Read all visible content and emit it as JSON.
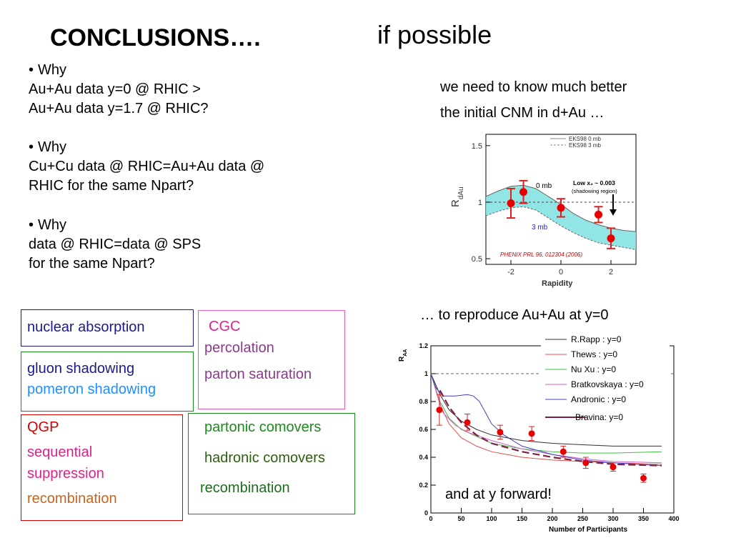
{
  "slide": {
    "title": "CONCLUSIONS….",
    "subtitle": "if possible",
    "note": [
      "we need to know much better",
      "the initial CNM in d+Au …"
    ],
    "reproduce": "… to reproduce Au+Au at y=0",
    "forward": "and at y forward!"
  },
  "questions": [
    {
      "bullet": "•",
      "head": "Why",
      "lines": [
        "Au+Au data y=0 @ RHIC >",
        "Au+Au data y=1.7 @ RHIC?"
      ]
    },
    {
      "bullet": "•",
      "head": "Why",
      "lines": [
        "Cu+Cu data @ RHIC=Au+Au data @",
        "RHIC for the same Npart?"
      ]
    },
    {
      "bullet": "•",
      "head": "Why",
      "lines": [
        "data @ RHIC=data @ SPS",
        "for the same Npart?"
      ]
    }
  ],
  "boxes": {
    "absorption": {
      "text": "nuclear absorption",
      "color": "#1a1a8c"
    },
    "shadowing": [
      {
        "text": "gluon shadowing",
        "color": "#1a1a8c"
      },
      {
        "text": "pomeron shadowing",
        "color": "#1e90ff"
      }
    ],
    "cgc": [
      {
        "text": "CGC",
        "color": "#e0218a"
      },
      {
        "text": "percolation",
        "color": "#8b3a8b"
      },
      {
        "text": "parton saturation",
        "color": "#8b3a8b"
      }
    ],
    "qgp": [
      {
        "text": "QGP",
        "color": "#d40000"
      },
      {
        "text": "sequential",
        "color": "#e0218a"
      },
      {
        "text": "suppression",
        "color": "#e0218a"
      },
      {
        "text": "recombination",
        "color": "#c8641e"
      }
    ],
    "comovers": [
      {
        "text": "partonic comovers",
        "color": "#1a8c1a"
      },
      {
        "text": "hadronic comovers",
        "color": "#2e5e10"
      },
      {
        "text": "recombination",
        "color": "#1a6e1a"
      }
    ],
    "colors": {
      "blue": "#1a1a8c",
      "magenta": "#e060c0",
      "red": "#d40000",
      "green": "#1a8c1a"
    }
  },
  "chart_data": [
    {
      "type": "line",
      "xlabel": "Rapidity",
      "ylabel": "R_dAu",
      "xlim": [
        -3,
        3
      ],
      "ylim": [
        0.45,
        1.6
      ],
      "xticks": [
        "-2",
        "0",
        "2"
      ],
      "yticks": [
        "0.5",
        "1",
        "1.5"
      ],
      "legend": [
        "EKS98 0 mb",
        "EKS98 3 mb"
      ],
      "band_upper": {
        "x": [
          -3,
          -2.5,
          -2,
          -1.5,
          -1,
          -0.5,
          0,
          0.5,
          1,
          1.5,
          2,
          2.5,
          3
        ],
        "y": [
          1.05,
          1.1,
          1.14,
          1.15,
          1.12,
          1.05,
          0.98,
          0.9,
          0.84,
          0.8,
          0.77,
          0.75,
          0.74
        ]
      },
      "band_lower": {
        "x": [
          -3,
          -2.5,
          -2,
          -1.5,
          -1,
          -0.5,
          0,
          0.5,
          1,
          1.5,
          2,
          2.5,
          3
        ],
        "y": [
          0.88,
          0.92,
          0.95,
          0.96,
          0.93,
          0.86,
          0.79,
          0.73,
          0.68,
          0.64,
          0.62,
          0.6,
          0.58
        ]
      },
      "points": [
        {
          "x": -2.0,
          "y": 0.99,
          "err": 0.13
        },
        {
          "x": -1.5,
          "y": 1.09,
          "err": 0.1
        },
        {
          "x": 0.0,
          "y": 0.95,
          "err": 0.08
        },
        {
          "x": 1.5,
          "y": 0.89,
          "err": 0.07
        },
        {
          "x": 2.0,
          "y": 0.68,
          "err": 0.09
        }
      ],
      "annotations": {
        "label_0mb": "0 mb",
        "label_3mb": "3 mb",
        "lowx": "Low x₂ ~ 0.003",
        "shadowing": "(shadowing region)",
        "citation": "PHENIX PRL 96, 012304 (2006)"
      }
    },
    {
      "type": "line",
      "xlabel": "Number of Participants",
      "ylabel": "R_AA",
      "xlim": [
        0,
        400
      ],
      "ylim": [
        0,
        1.2
      ],
      "xticks": [
        "0",
        "50",
        "100",
        "150",
        "200",
        "250",
        "300",
        "350",
        "400"
      ],
      "yticks": [
        "0",
        "0.2",
        "0.4",
        "0.6",
        "0.8",
        "1",
        "1.2"
      ],
      "series": [
        {
          "name": "R.Rapp : y=0",
          "color": "#303030",
          "dash": "",
          "x": [
            0,
            15,
            30,
            50,
            75,
            100,
            150,
            200,
            250,
            300,
            380
          ],
          "y": [
            1.0,
            0.85,
            0.74,
            0.66,
            0.6,
            0.56,
            0.52,
            0.5,
            0.49,
            0.48,
            0.48
          ]
        },
        {
          "name": "Thews : y=0",
          "color": "#e05050",
          "dash": "",
          "x": [
            0,
            15,
            30,
            50,
            75,
            100,
            150,
            200,
            250,
            300,
            380
          ],
          "y": [
            1.0,
            0.78,
            0.64,
            0.54,
            0.48,
            0.44,
            0.4,
            0.38,
            0.37,
            0.36,
            0.35
          ]
        },
        {
          "name": "Nu Xu : y=0",
          "color": "#40c040",
          "dash": "",
          "x": [
            0,
            15,
            30,
            50,
            75,
            100,
            150,
            200,
            250,
            300,
            380
          ],
          "y": [
            1.0,
            0.8,
            0.68,
            0.6,
            0.55,
            0.5,
            0.46,
            0.44,
            0.43,
            0.43,
            0.44
          ]
        },
        {
          "name": "Bratkovskaya : y=0",
          "color": "#d060d0",
          "dash": "",
          "x": [
            0,
            20,
            40,
            60,
            80,
            100,
            150,
            200,
            250,
            300,
            380
          ],
          "y": [
            1.0,
            0.72,
            0.63,
            0.58,
            0.55,
            0.52,
            0.46,
            0.42,
            0.39,
            0.37,
            0.36
          ]
        },
        {
          "name": "Andronic : y=0",
          "color": "#4040c0",
          "dash": "",
          "x": [
            0,
            8,
            20,
            40,
            60,
            70,
            80,
            90,
            100,
            120,
            150,
            200,
            250,
            300,
            380
          ],
          "y": [
            1.0,
            0.9,
            0.84,
            0.84,
            0.85,
            0.84,
            0.8,
            0.72,
            0.64,
            0.56,
            0.48,
            0.42,
            0.38,
            0.36,
            0.34
          ]
        },
        {
          "name": "Bravina: y=0",
          "color": "#802040",
          "dash": "10 5",
          "x": [
            15,
            30,
            50,
            75,
            100,
            150,
            200,
            250,
            300,
            380
          ],
          "y": [
            0.88,
            0.76,
            0.65,
            0.56,
            0.5,
            0.44,
            0.4,
            0.37,
            0.35,
            0.34
          ]
        }
      ],
      "points": [
        {
          "x": 14,
          "y": 0.74,
          "err": 0.11
        },
        {
          "x": 60,
          "y": 0.65,
          "err": 0.06
        },
        {
          "x": 114,
          "y": 0.58,
          "err": 0.05
        },
        {
          "x": 166,
          "y": 0.57,
          "err": 0.05
        },
        {
          "x": 218,
          "y": 0.44,
          "err": 0.04
        },
        {
          "x": 255,
          "y": 0.36,
          "err": 0.04
        },
        {
          "x": 300,
          "y": 0.33,
          "err": 0.03
        },
        {
          "x": 350,
          "y": 0.25,
          "err": 0.03
        }
      ]
    }
  ]
}
